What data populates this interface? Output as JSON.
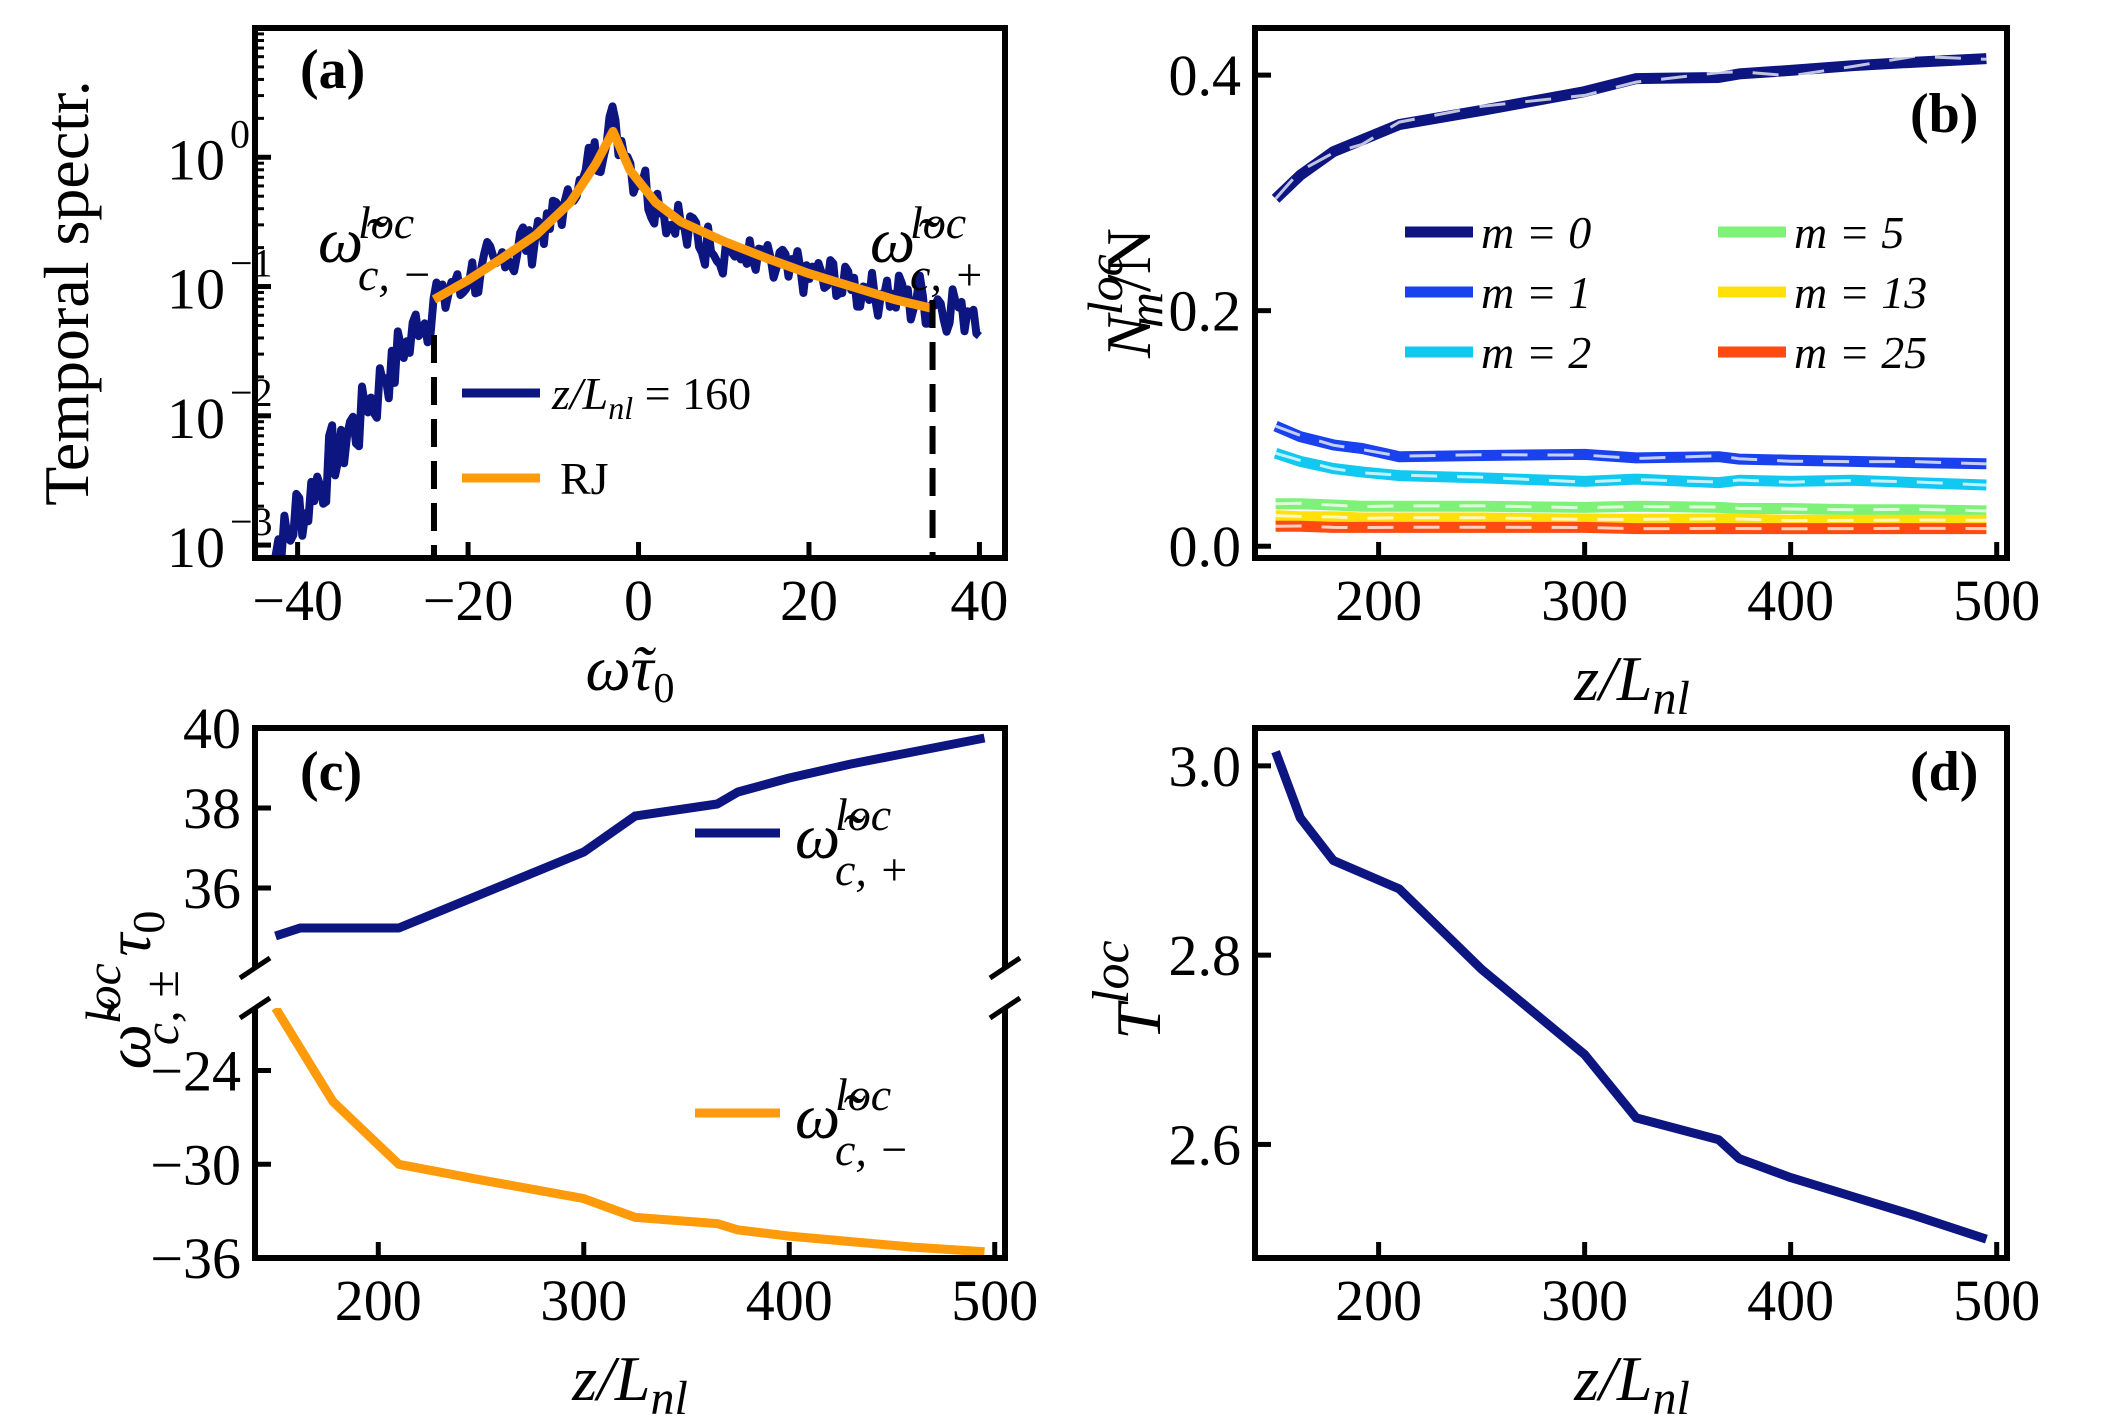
{
  "colors": {
    "navy": "#0d1580",
    "orange": "#ff9a0a",
    "blue1": "#1a41ee",
    "cyan2": "#10c8f0",
    "green5": "#7ef278",
    "yellow13": "#ffe00a",
    "red25": "#ff4a10"
  },
  "chart_data": [
    {
      "panel": "(a)",
      "type": "line",
      "yscale": "log",
      "xlim": [
        -45,
        43
      ],
      "ylim_log10": [
        -3.1,
        1.0
      ],
      "xticks": [
        -40,
        -20,
        0,
        20,
        40
      ],
      "xtick_labels": [
        "−40",
        "−20",
        "0",
        "20",
        "40"
      ],
      "yticks_log10": [
        0,
        -1,
        -2,
        -3
      ],
      "ytick_labels": [
        {
          "base": "10",
          "exp": "0"
        },
        {
          "base": "10",
          "exp": "−1"
        },
        {
          "base": "10",
          "exp": "−2"
        },
        {
          "base": "10",
          "exp": "−3"
        }
      ],
      "xlabel": "ω̃τ₀",
      "ylabel": "Temporal spectr.",
      "annotations": {
        "cutoff_minus": {
          "x": -24,
          "label": "ω̃",
          "sup": "loc",
          "sub": "c, −"
        },
        "cutoff_plus": {
          "x": 34.5,
          "label": "ω̃",
          "sup": "loc",
          "sub": "c, +"
        }
      },
      "series": [
        {
          "name": "z/L_nl = 160",
          "legend": "z/L",
          "legend_sub": "nl",
          "legend_val": " = 160",
          "color": "#0d1580",
          "peak_log10": 0.3,
          "peak_x": -3
        },
        {
          "name": "RJ",
          "legend": "RJ",
          "color": "#ff9a0a",
          "x": [
            -24,
            -20,
            -16,
            -12,
            -8,
            -5,
            -3,
            -1,
            2,
            5,
            10,
            15,
            20,
            25,
            30,
            34.5
          ],
          "log10y": [
            -1.1,
            -0.95,
            -0.78,
            -0.6,
            -0.35,
            -0.05,
            0.2,
            -0.1,
            -0.35,
            -0.5,
            -0.65,
            -0.78,
            -0.9,
            -1.0,
            -1.1,
            -1.17
          ]
        }
      ]
    },
    {
      "panel": "(b)",
      "type": "line",
      "xlim": [
        140,
        505
      ],
      "ylim": [
        -0.01,
        0.44
      ],
      "xticks": [
        200,
        300,
        400,
        500
      ],
      "yticks": [
        0.0,
        0.2,
        0.4
      ],
      "ytick_labels": [
        "0.0",
        "0.2",
        "0.4"
      ],
      "xlabel": "z/L",
      "xlabel_sub": "nl",
      "ylabel": "N",
      "ylabel_sup": "loc",
      "ylabel_sub": "m",
      "ylabel_tail": "/N",
      "x": [
        150,
        162,
        178,
        192,
        210,
        250,
        300,
        325,
        365,
        375,
        400,
        430,
        460,
        495
      ],
      "series": [
        {
          "name": "m = 0",
          "label": "m = 0",
          "color": "#0d1580",
          "values": [
            0.295,
            0.315,
            0.335,
            0.345,
            0.358,
            0.37,
            0.386,
            0.397,
            0.398,
            0.401,
            0.404,
            0.408,
            0.411,
            0.414
          ]
        },
        {
          "name": "m = 1",
          "label": "m = 1",
          "color": "#1a41ee",
          "values": [
            0.102,
            0.093,
            0.086,
            0.083,
            0.076,
            0.077,
            0.078,
            0.075,
            0.076,
            0.074,
            0.073,
            0.072,
            0.071,
            0.07
          ]
        },
        {
          "name": "m = 2",
          "label": "m = 2",
          "color": "#10c8f0",
          "values": [
            0.079,
            0.072,
            0.066,
            0.063,
            0.06,
            0.058,
            0.055,
            0.057,
            0.054,
            0.056,
            0.055,
            0.056,
            0.054,
            0.052
          ]
        },
        {
          "name": "m = 5",
          "label": "m = 5",
          "color": "#7ef278",
          "values": [
            0.036,
            0.036,
            0.035,
            0.034,
            0.034,
            0.034,
            0.033,
            0.034,
            0.033,
            0.032,
            0.032,
            0.031,
            0.031,
            0.03
          ]
        },
        {
          "name": "m = 13",
          "label": "m = 13",
          "color": "#ffe00a",
          "values": [
            0.026,
            0.025,
            0.025,
            0.024,
            0.024,
            0.024,
            0.023,
            0.023,
            0.023,
            0.023,
            0.022,
            0.022,
            0.022,
            0.022
          ]
        },
        {
          "name": "m = 25",
          "label": "m = 25",
          "color": "#ff4a10",
          "values": [
            0.017,
            0.017,
            0.016,
            0.016,
            0.016,
            0.016,
            0.016,
            0.015,
            0.015,
            0.015,
            0.015,
            0.015,
            0.015,
            0.015
          ]
        }
      ]
    },
    {
      "panel": "(c)",
      "type": "line",
      "broken_axis": true,
      "xlim": [
        140,
        505
      ],
      "upper_ylim": [
        34.0,
        40.0
      ],
      "lower_ylim": [
        -36,
        -20
      ],
      "xticks": [
        200,
        300,
        400,
        500
      ],
      "yticks_upper": [
        36,
        38,
        40
      ],
      "yticks_lower": [
        -24,
        -30,
        -36
      ],
      "ytick_labels_upper": [
        "36",
        "38",
        "40"
      ],
      "ytick_labels_lower": [
        "−24",
        "−30",
        "−36"
      ],
      "xlabel": "z/L",
      "xlabel_sub": "nl",
      "ylabel": "ω̃",
      "ylabel_sup": "loc",
      "ylabel_sub": "c, ±",
      "ylabel_tail": "τ",
      "series": [
        {
          "name": "ω̃_c,+^loc",
          "label": "ω̃",
          "label_sup": "loc",
          "label_sub": "c, +",
          "color": "#0d1580",
          "x": [
            150,
            162,
            210,
            300,
            325,
            365,
            375,
            400,
            430,
            460,
            495
          ],
          "values": [
            34.8,
            35.0,
            35.0,
            36.9,
            37.8,
            38.1,
            38.4,
            38.75,
            39.1,
            39.4,
            39.75
          ]
        },
        {
          "name": "ω̃_c,-^loc",
          "label": "ω̃",
          "label_sup": "loc",
          "label_sub": "c, −",
          "color": "#ff9a0a",
          "x": [
            150,
            178,
            210,
            250,
            300,
            325,
            365,
            375,
            400,
            430,
            460,
            495
          ],
          "values": [
            -20.0,
            -26.0,
            -30.0,
            -31.0,
            -32.2,
            -33.4,
            -33.8,
            -34.2,
            -34.6,
            -34.95,
            -35.3,
            -35.6
          ]
        }
      ]
    },
    {
      "panel": "(d)",
      "type": "line",
      "xlim": [
        140,
        505
      ],
      "ylim": [
        2.48,
        3.04
      ],
      "xticks": [
        200,
        300,
        400,
        500
      ],
      "yticks": [
        2.6,
        2.8,
        3.0
      ],
      "ytick_labels": [
        "2.6",
        "2.8",
        "3.0"
      ],
      "xlabel": "z/L",
      "xlabel_sub": "nl",
      "ylabel": "T",
      "ylabel_sup": "loc",
      "series": [
        {
          "name": "T_loc",
          "color": "#0d1580",
          "x": [
            150,
            162,
            178,
            210,
            250,
            300,
            325,
            365,
            375,
            400,
            430,
            460,
            495
          ],
          "values": [
            3.015,
            2.945,
            2.9,
            2.87,
            2.785,
            2.695,
            2.628,
            2.605,
            2.585,
            2.565,
            2.545,
            2.525,
            2.5
          ]
        }
      ]
    }
  ]
}
